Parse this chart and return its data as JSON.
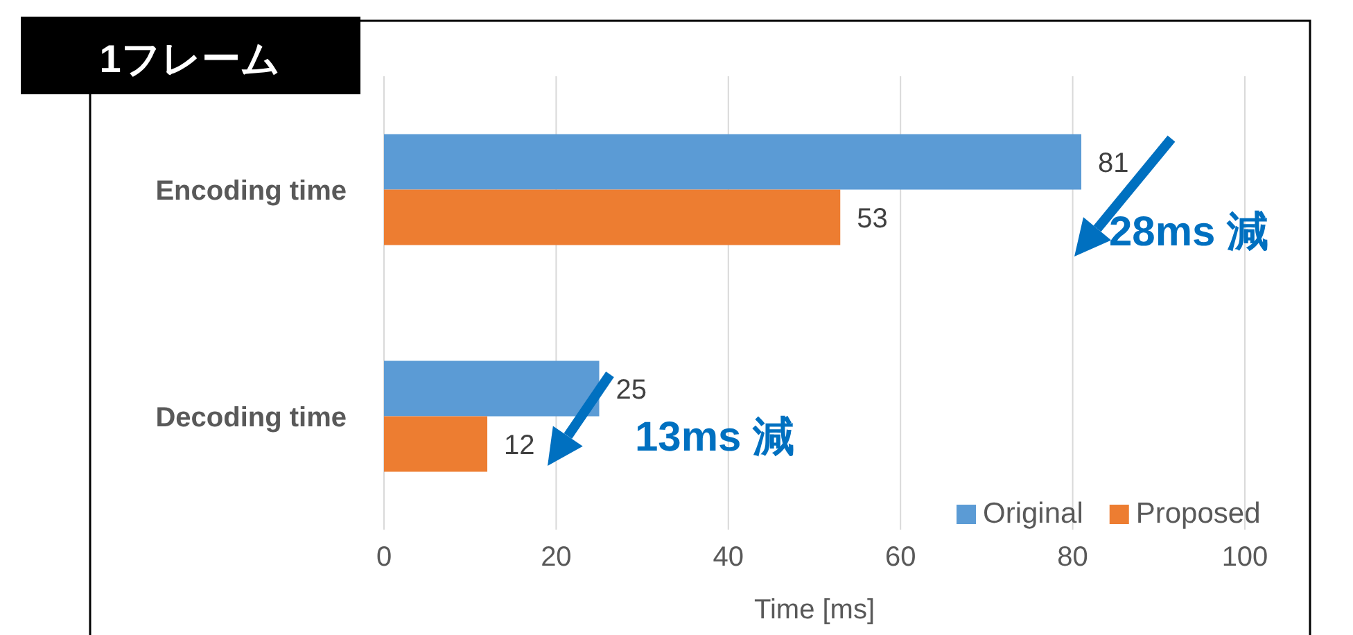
{
  "chart_data": {
    "type": "bar",
    "orientation": "horizontal",
    "title": "1フレーム",
    "xlabel": "Time [ms]",
    "categories": [
      "Encoding time",
      "Decoding time"
    ],
    "series": [
      {
        "name": "Original",
        "color": "#5b9bd5",
        "values": [
          81,
          25
        ]
      },
      {
        "name": "Proposed",
        "color": "#ed7d31",
        "values": [
          53,
          12
        ]
      }
    ],
    "xlim": [
      0,
      100
    ],
    "xticks": [
      0,
      20,
      40,
      60,
      80,
      100
    ],
    "grid": "x",
    "legend": "bottom right",
    "data_labels": true,
    "annotations": [
      "28ms 減",
      "13ms 減"
    ]
  }
}
